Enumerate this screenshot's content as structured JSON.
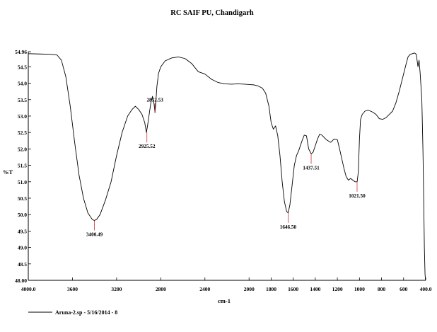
{
  "chart_data": {
    "type": "line",
    "title": "RC SAIF PU, Chandigarh",
    "xlabel": "cm-1",
    "ylabel": "%T",
    "xlim": [
      4000.0,
      400.0
    ],
    "ylim": [
      48.0,
      54.96
    ],
    "x_ticks": [
      {
        "value": 4000,
        "label": "4000.0"
      },
      {
        "value": 3600,
        "label": "3600"
      },
      {
        "value": 3200,
        "label": "3200"
      },
      {
        "value": 2800,
        "label": "2800"
      },
      {
        "value": 2400,
        "label": "2400"
      },
      {
        "value": 2000,
        "label": "2000"
      },
      {
        "value": 1800,
        "label": "1800"
      },
      {
        "value": 1600,
        "label": "1600"
      },
      {
        "value": 1400,
        "label": "1400"
      },
      {
        "value": 1200,
        "label": "1200"
      },
      {
        "value": 1000,
        "label": "1000"
      },
      {
        "value": 800,
        "label": "800"
      },
      {
        "value": 600,
        "label": "600"
      },
      {
        "value": 400,
        "label": "400.0"
      }
    ],
    "y_ticks": [
      {
        "value": 54.96,
        "label": "54.96"
      },
      {
        "value": 54.5,
        "label": "54.5"
      },
      {
        "value": 54.0,
        "label": "54.0"
      },
      {
        "value": 53.5,
        "label": "53.5"
      },
      {
        "value": 53.0,
        "label": "53.0"
      },
      {
        "value": 52.5,
        "label": "52.5"
      },
      {
        "value": 52.0,
        "label": "52.0"
      },
      {
        "value": 51.5,
        "label": "51.5"
      },
      {
        "value": 51.0,
        "label": "51.0"
      },
      {
        "value": 50.5,
        "label": "50.5"
      },
      {
        "value": 50.0,
        "label": "50.0"
      },
      {
        "value": 49.5,
        "label": "49.5"
      },
      {
        "value": 49.0,
        "label": "49.0"
      },
      {
        "value": 48.5,
        "label": "48.5"
      },
      {
        "value": 48.0,
        "label": "48.00"
      }
    ],
    "peaks": [
      {
        "x": 3400.49,
        "y": 49.82,
        "label": "3400.49"
      },
      {
        "x": 2925.52,
        "y": 52.5,
        "label": "2925.52"
      },
      {
        "x": 2852.53,
        "y": 53.1,
        "label": "2852.53"
      },
      {
        "x": 1646.5,
        "y": 50.05,
        "label": "1646.50"
      },
      {
        "x": 1437.51,
        "y": 51.85,
        "label": "1437.51"
      },
      {
        "x": 1021.5,
        "y": 51.0,
        "label": "1021.50"
      }
    ],
    "series": [
      {
        "name": "Aruna-2.sp - 5/16/2014 - 8",
        "points": [
          [
            4000,
            54.9
          ],
          [
            3900,
            54.89
          ],
          [
            3800,
            54.88
          ],
          [
            3740,
            54.86
          ],
          [
            3700,
            54.7
          ],
          [
            3660,
            54.2
          ],
          [
            3620,
            53.3
          ],
          [
            3580,
            52.2
          ],
          [
            3540,
            51.2
          ],
          [
            3500,
            50.5
          ],
          [
            3460,
            50.05
          ],
          [
            3420,
            49.85
          ],
          [
            3400,
            49.82
          ],
          [
            3380,
            49.86
          ],
          [
            3350,
            50.0
          ],
          [
            3300,
            50.45
          ],
          [
            3250,
            51.0
          ],
          [
            3200,
            51.8
          ],
          [
            3150,
            52.5
          ],
          [
            3100,
            53.0
          ],
          [
            3060,
            53.2
          ],
          [
            3030,
            53.3
          ],
          [
            3000,
            53.2
          ],
          [
            2970,
            53.05
          ],
          [
            2945,
            52.8
          ],
          [
            2930,
            52.5
          ],
          [
            2920,
            52.7
          ],
          [
            2905,
            53.05
          ],
          [
            2890,
            53.4
          ],
          [
            2875,
            53.6
          ],
          [
            2860,
            53.35
          ],
          [
            2852,
            53.1
          ],
          [
            2845,
            53.4
          ],
          [
            2835,
            53.9
          ],
          [
            2820,
            54.3
          ],
          [
            2800,
            54.5
          ],
          [
            2760,
            54.68
          ],
          [
            2700,
            54.77
          ],
          [
            2640,
            54.8
          ],
          [
            2580,
            54.75
          ],
          [
            2520,
            54.6
          ],
          [
            2460,
            54.35
          ],
          [
            2400,
            54.28
          ],
          [
            2340,
            54.12
          ],
          [
            2280,
            54.02
          ],
          [
            2220,
            53.98
          ],
          [
            2160,
            53.97
          ],
          [
            2100,
            53.98
          ],
          [
            2040,
            53.97
          ],
          [
            2000,
            53.96
          ],
          [
            1960,
            53.95
          ],
          [
            1920,
            53.92
          ],
          [
            1880,
            53.85
          ],
          [
            1850,
            53.7
          ],
          [
            1820,
            53.3
          ],
          [
            1800,
            52.8
          ],
          [
            1780,
            52.6
          ],
          [
            1760,
            52.7
          ],
          [
            1740,
            52.4
          ],
          [
            1720,
            51.8
          ],
          [
            1700,
            51.0
          ],
          [
            1680,
            50.4
          ],
          [
            1660,
            50.1
          ],
          [
            1646,
            50.05
          ],
          [
            1630,
            50.3
          ],
          [
            1610,
            50.9
          ],
          [
            1590,
            51.5
          ],
          [
            1570,
            51.8
          ],
          [
            1550,
            51.95
          ],
          [
            1520,
            52.25
          ],
          [
            1500,
            52.42
          ],
          [
            1480,
            52.4
          ],
          [
            1460,
            52.0
          ],
          [
            1437,
            51.85
          ],
          [
            1420,
            51.9
          ],
          [
            1400,
            52.1
          ],
          [
            1380,
            52.3
          ],
          [
            1360,
            52.45
          ],
          [
            1340,
            52.42
          ],
          [
            1300,
            52.28
          ],
          [
            1260,
            52.2
          ],
          [
            1230,
            52.3
          ],
          [
            1200,
            52.28
          ],
          [
            1180,
            52.0
          ],
          [
            1160,
            51.7
          ],
          [
            1140,
            51.4
          ],
          [
            1120,
            51.15
          ],
          [
            1100,
            51.05
          ],
          [
            1080,
            51.1
          ],
          [
            1060,
            51.05
          ],
          [
            1040,
            51.0
          ],
          [
            1021,
            51.0
          ],
          [
            1010,
            51.3
          ],
          [
            1000,
            52.3
          ],
          [
            990,
            52.9
          ],
          [
            975,
            53.05
          ],
          [
            950,
            53.15
          ],
          [
            920,
            53.18
          ],
          [
            880,
            53.12
          ],
          [
            850,
            53.05
          ],
          [
            820,
            52.92
          ],
          [
            790,
            52.9
          ],
          [
            760,
            52.95
          ],
          [
            730,
            53.05
          ],
          [
            700,
            53.15
          ],
          [
            670,
            53.4
          ],
          [
            640,
            53.75
          ],
          [
            610,
            54.15
          ],
          [
            580,
            54.55
          ],
          [
            560,
            54.8
          ],
          [
            540,
            54.88
          ],
          [
            520,
            54.9
          ],
          [
            500,
            54.92
          ],
          [
            485,
            54.88
          ],
          [
            470,
            54.5
          ],
          [
            460,
            54.7
          ],
          [
            450,
            54.3
          ],
          [
            435,
            53.5
          ],
          [
            425,
            52.0
          ],
          [
            418,
            50.5
          ],
          [
            412,
            49.0
          ],
          [
            406,
            48.2
          ],
          [
            402,
            48.0
          ]
        ]
      }
    ],
    "legend": "bottom-left",
    "grid": false
  }
}
